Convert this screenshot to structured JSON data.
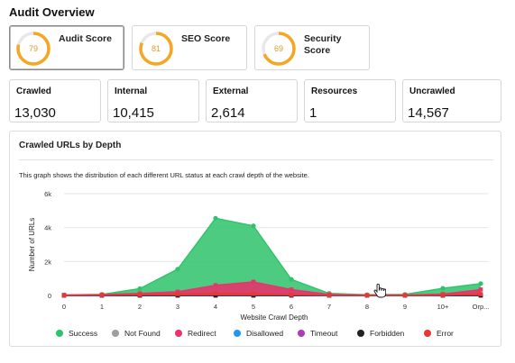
{
  "header": {
    "title": "Audit Overview"
  },
  "scores": [
    {
      "label": "Audit Score",
      "value": "79",
      "percent": 79,
      "selected": true
    },
    {
      "label": "SEO Score",
      "value": "81",
      "percent": 81,
      "selected": false
    },
    {
      "label": "Security Score",
      "value": "69",
      "percent": 69,
      "selected": false
    }
  ],
  "stats": [
    {
      "label": "Crawled",
      "value": "13,030"
    },
    {
      "label": "Internal",
      "value": "10,415"
    },
    {
      "label": "External",
      "value": "2,614"
    },
    {
      "label": "Resources",
      "value": "1"
    },
    {
      "label": "Uncrawled",
      "value": "14,567"
    }
  ],
  "colors": {
    "accent": "#f5a623",
    "ring_bg": "#e8e8e8"
  },
  "panel": {
    "title": "Crawled URLs by Depth",
    "description": "This graph shows the distribution of each different URL status at each crawl depth of the website."
  },
  "chart_data": {
    "type": "area",
    "title": "",
    "xlabel": "Website Crawl Depth",
    "ylabel": "Number of URLs",
    "categories": [
      "0",
      "1",
      "2",
      "3",
      "4",
      "5",
      "6",
      "7",
      "8",
      "9",
      "10+",
      "Orp..."
    ],
    "ylim": [
      0,
      6000
    ],
    "yticks": [
      "0",
      "2k",
      "4k",
      "6k"
    ],
    "ytick_values": [
      0,
      2000,
      4000,
      6000
    ],
    "grid": true,
    "legend_position": "bottom",
    "series": [
      {
        "name": "Success",
        "color": "#2ec36b",
        "values": [
          30,
          60,
          400,
          1550,
          4550,
          4100,
          950,
          120,
          40,
          60,
          420,
          700
        ]
      },
      {
        "name": "Not Found",
        "color": "#9e9e9e",
        "values": [
          0,
          0,
          0,
          0,
          0,
          0,
          0,
          0,
          0,
          0,
          0,
          0
        ]
      },
      {
        "name": "Redirect",
        "color": "#e8336b",
        "values": [
          30,
          50,
          120,
          220,
          600,
          800,
          350,
          60,
          20,
          20,
          80,
          350
        ]
      },
      {
        "name": "Disallowed",
        "color": "#2196f3",
        "values": [
          0,
          0,
          0,
          0,
          0,
          0,
          0,
          0,
          0,
          0,
          0,
          0
        ]
      },
      {
        "name": "Timeout",
        "color": "#b03ab8",
        "values": [
          0,
          0,
          0,
          0,
          0,
          0,
          0,
          0,
          0,
          0,
          0,
          0
        ]
      },
      {
        "name": "Forbidden",
        "color": "#222222",
        "values": [
          0,
          0,
          0,
          0,
          0,
          0,
          0,
          0,
          0,
          0,
          0,
          0
        ]
      },
      {
        "name": "Error",
        "color": "#e53935",
        "values": [
          10,
          20,
          40,
          80,
          120,
          100,
          40,
          10,
          5,
          5,
          20,
          80
        ]
      }
    ]
  }
}
